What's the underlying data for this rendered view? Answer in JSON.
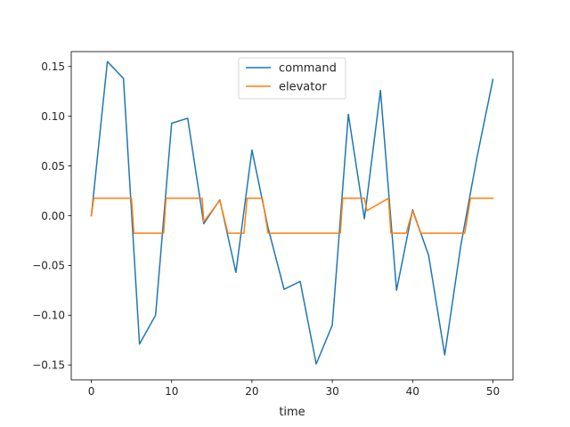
{
  "chart_data": {
    "type": "line",
    "title": "",
    "xlabel": "time",
    "ylabel": "",
    "xlim": [
      -2.5,
      52.5
    ],
    "ylim": [
      -0.165,
      0.165
    ],
    "xticks": [
      0,
      10,
      20,
      30,
      40,
      50
    ],
    "xtick_labels": [
      "0",
      "10",
      "20",
      "30",
      "40",
      "50"
    ],
    "yticks": [
      -0.15,
      -0.1,
      -0.05,
      0.0,
      0.05,
      0.1,
      0.15
    ],
    "ytick_labels": [
      "−0.15",
      "−0.10",
      "−0.05",
      "0.00",
      "0.05",
      "0.10",
      "0.15"
    ],
    "grid": false,
    "legend_position": "upper center",
    "series": [
      {
        "name": "command",
        "color": "#1f77b4",
        "x": [
          0,
          2,
          4,
          6,
          8,
          10,
          12,
          14,
          16,
          18,
          20,
          22,
          24,
          26,
          28,
          30,
          32,
          34,
          36,
          38,
          40,
          42,
          44,
          46,
          48,
          50
        ],
        "y": [
          0.0,
          0.155,
          0.138,
          -0.129,
          -0.1,
          0.093,
          0.098,
          -0.008,
          0.016,
          -0.057,
          0.066,
          -0.012,
          -0.074,
          -0.066,
          -0.149,
          -0.11,
          0.102,
          -0.003,
          0.126,
          -0.075,
          0.006,
          -0.04,
          -0.14,
          -0.03,
          0.058,
          0.137
        ]
      },
      {
        "name": "elevator",
        "color": "#ff7f0e",
        "x": [
          0,
          0.3,
          5,
          5.3,
          9,
          9.3,
          13.8,
          14,
          16,
          17,
          19,
          19.4,
          21.3,
          22,
          31,
          31.3,
          34,
          34.3,
          37,
          37.3,
          39.2,
          40,
          41,
          46.5,
          47.2,
          50
        ],
        "y": [
          0.0,
          0.0175,
          0.0175,
          -0.0175,
          -0.0175,
          0.0175,
          0.0175,
          -0.006,
          0.0155,
          -0.0175,
          -0.0175,
          0.0175,
          0.0175,
          -0.0175,
          -0.0175,
          0.0175,
          0.0175,
          0.005,
          0.0175,
          -0.0175,
          -0.0175,
          0.005,
          -0.0175,
          -0.0175,
          0.0175,
          0.0175
        ]
      }
    ]
  }
}
